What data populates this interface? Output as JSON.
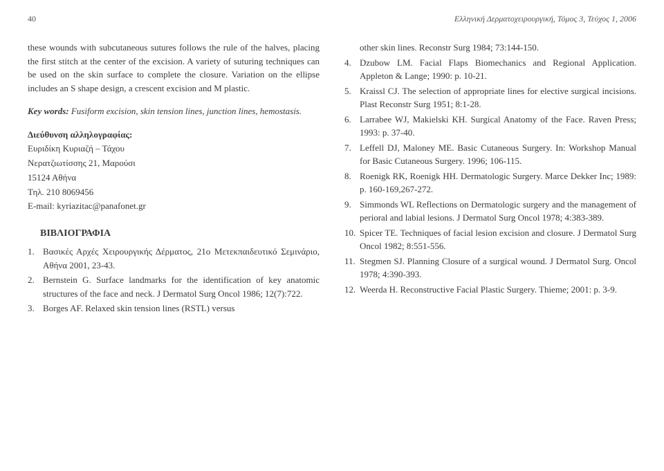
{
  "header": {
    "page_number": "40",
    "journal": "Ελληνική Δερματοχειρουργική, Τόμος 3, Τεύχος 1, 2006"
  },
  "left": {
    "para1": "these wounds with subcutaneous sutures follows the rule of the halves, placing the first stitch at the center of the excision. A variety of suturing techniques can be used on the skin surface to complete the closure. Variation on the ellipse includes an S shape design, a crescent excision and M plastic.",
    "kw_label": "Key words:",
    "kw_text": " Fusiform excision, skin tension lines, junction lines, hemostasis.",
    "addr_heading": "Διεύθυνση αλληλογραφίας:",
    "addr_l1": "Ευριδίκη Κυριαζή – Τάχου",
    "addr_l2": "Νερατζιωτίσσης 21, Μαρούσι",
    "addr_l3": "15124 Αθήνα",
    "addr_l4": "Τηλ. 210 8069456",
    "addr_l5": "E-mail: kyriazitac@panafonet.gr",
    "biblio_heading": "ΒΙΒΛΙΟΓΡΑΦΙΑ",
    "refs": [
      {
        "n": "1.",
        "t": "Βασικές Αρχές Χειρουργικής Δέρματος, 21ο Με­τεκπαιδευτικό Σεμινάριο, Αθήνα 2001, 23-43."
      },
      {
        "n": "2.",
        "t": "Bernstein G. Surface landmarks for the identification of key anatomic structures of the face and neck. J Dermatol Surg Oncol 1986; 12(7):722."
      },
      {
        "n": "3.",
        "t": "Borges AF. Relaxed skin tension lines (RSTL) versus"
      }
    ]
  },
  "right": {
    "orphan": "other skin lines. Reconstr Surg 1984; 73:144-150.",
    "refs": [
      {
        "n": "4.",
        "t": "Dzubow LM. Facial Flaps Biomechanics and Regional Application. Appleton & Lange; 1990: p. 10-21."
      },
      {
        "n": "5.",
        "t": "Kraissl CJ. The selection of appropriate lines for elective surgical incisions. Plast Reconstr Surg 1951; 8:1-28."
      },
      {
        "n": "6.",
        "t": "Larrabee WJ, Makielski KH. Surgical Anatomy of the Face. Raven Press; 1993: p. 37-40."
      },
      {
        "n": "7.",
        "t": "Leffell DJ, Maloney ME. Basic Cutaneous Surgery. In: Workshop Manual for Basic Cutaneous Surgery. 1996; 106-115."
      },
      {
        "n": "8.",
        "t": "Roenigk RK, Roenigk HH. Dermatologic Surgery. Marce Dekker Inc; 1989: p. 160-169,267-272."
      },
      {
        "n": "9.",
        "t": "Simmonds WL Reflections on Dermatologic surgery and the management of perioral and labial lesions. J Dermatol Surg Oncol 1978; 4:383-389."
      },
      {
        "n": "10.",
        "t": "Spicer TE. Techniques of facial lesion excision and closure. J Dermatol Surg Oncol 1982; 8:551-556."
      },
      {
        "n": "11.",
        "t": "Stegmen SJ. Planning Closure of a surgical wound. J Dermatol Surg. Oncol 1978; 4:390-393."
      },
      {
        "n": "12.",
        "t": "Weerda H. Reconstructive Facial Plastic Surgery. Thieme; 2001: p. 3-9."
      }
    ]
  }
}
